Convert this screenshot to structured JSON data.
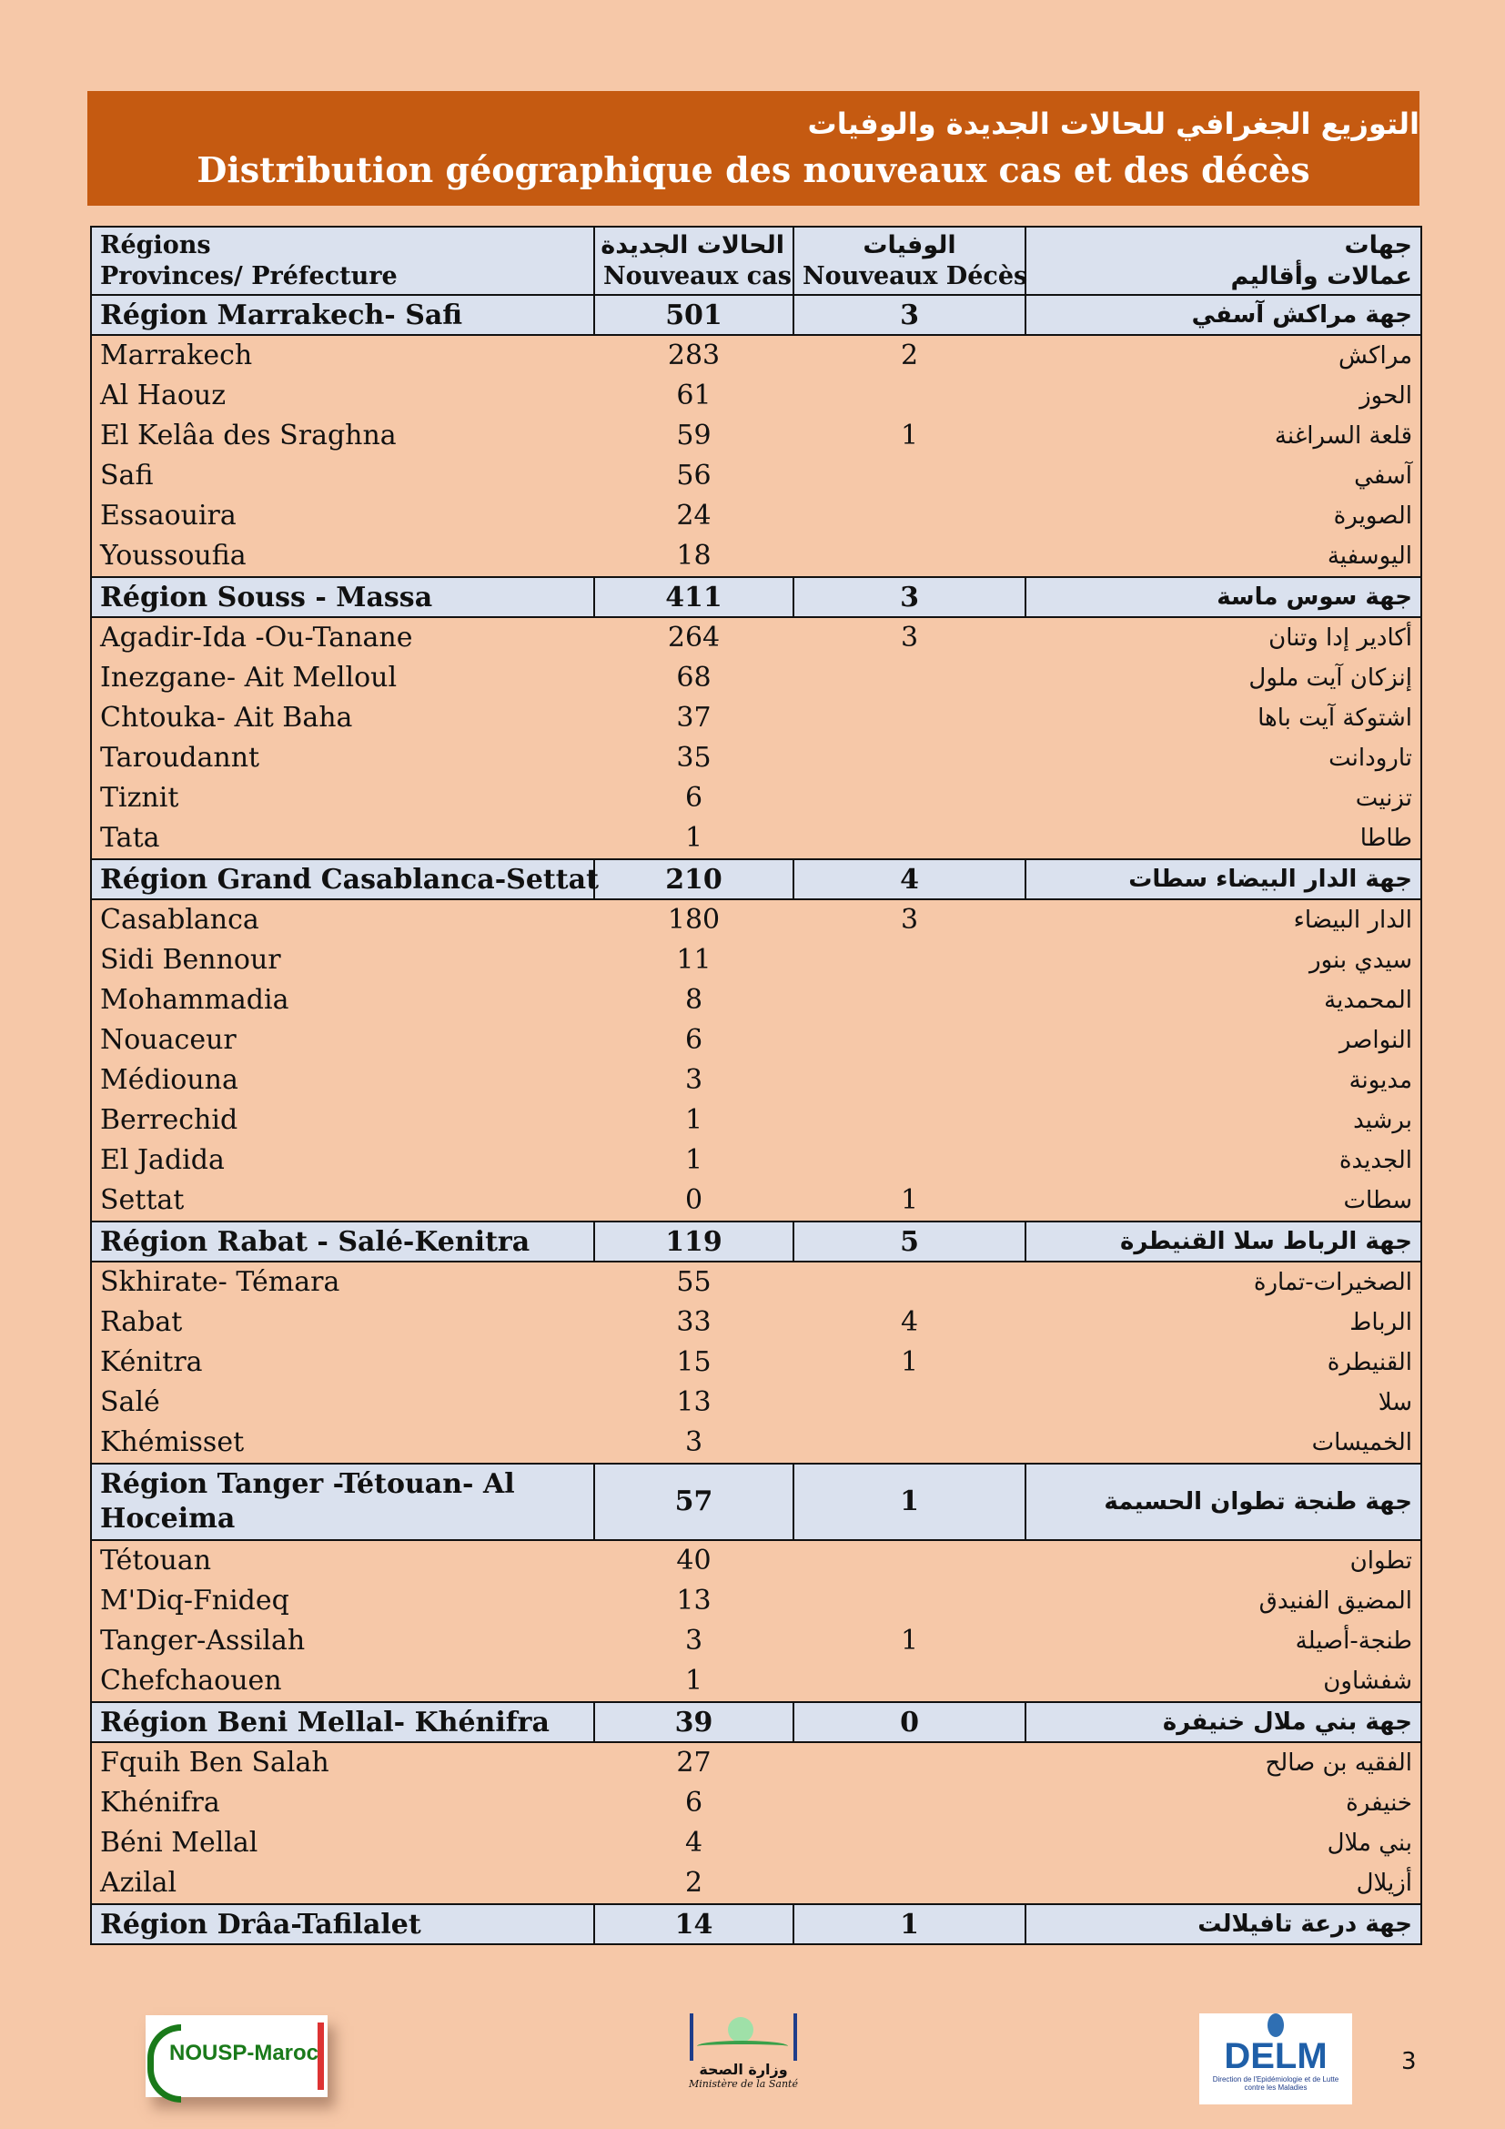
{
  "title": {
    "arabic": "التوزيع الجغرافي للحالات الجديدة والوفيات",
    "french": "Distribution géographique des nouveaux cas et des décès"
  },
  "table_header": {
    "col1_line1": "Régions",
    "col1_line2": "Provinces/ Préfecture",
    "col2_line1": "الحالات الجديدة",
    "col2_line2": "Nouveaux cas",
    "col3_line1": "الوفيات",
    "col3_line2": "Nouveaux Décès",
    "col4_line1": "جهات",
    "col4_line2": "عمالات وأقاليم"
  },
  "regions": [
    {
      "name": "Région Marrakech- Safi",
      "cases": "501",
      "deaths": "3",
      "arabic": "جهة مراكش آسفي",
      "provinces": [
        {
          "name": "Marrakech",
          "cases": "283",
          "deaths": "2",
          "arabic": "مراكش"
        },
        {
          "name": "Al  Haouz",
          "cases": "61",
          "deaths": "",
          "arabic": "الحوز"
        },
        {
          "name": "El Kelâa des  Sraghna",
          "cases": "59",
          "deaths": "1",
          "arabic": "قلعة السراغنة"
        },
        {
          "name": "Safi",
          "cases": "56",
          "deaths": "",
          "arabic": "آسفي"
        },
        {
          "name": "Essaouira",
          "cases": "24",
          "deaths": "",
          "arabic": "الصويرة"
        },
        {
          "name": "Youssoufia",
          "cases": "18",
          "deaths": "",
          "arabic": "اليوسفية"
        }
      ]
    },
    {
      "name": "Région Souss - Massa",
      "cases": "411",
      "deaths": "3",
      "arabic": "جهة سوس ماسة",
      "provinces": [
        {
          "name": "Agadir-Ida -Ou-Tanane",
          "cases": "264",
          "deaths": "3",
          "arabic": "أكادير إدا وتنان"
        },
        {
          "name": "Inezgane- Ait Melloul",
          "cases": "68",
          "deaths": "",
          "arabic": "إنزكان آيت ملول"
        },
        {
          "name": "Chtouka- Ait Baha",
          "cases": "37",
          "deaths": "",
          "arabic": "اشتوكة آيت باها"
        },
        {
          "name": "Taroudannt",
          "cases": "35",
          "deaths": "",
          "arabic": "تارودانت"
        },
        {
          "name": "Tiznit",
          "cases": "6",
          "deaths": "",
          "arabic": "تزنيت"
        },
        {
          "name": "Tata",
          "cases": "1",
          "deaths": "",
          "arabic": "طاطا"
        }
      ]
    },
    {
      "name": "Région Grand Casablanca-Settat",
      "cases": "210",
      "deaths": "4",
      "arabic": "جهة الدار البيضاء سطات",
      "provinces": [
        {
          "name": "Casablanca",
          "cases": "180",
          "deaths": "3",
          "arabic": "الدار البيضاء"
        },
        {
          "name": "Sidi Bennour",
          "cases": "11",
          "deaths": "",
          "arabic": "سيدي بنور"
        },
        {
          "name": "Mohammadia",
          "cases": "8",
          "deaths": "",
          "arabic": "المحمدية"
        },
        {
          "name": "Nouaceur",
          "cases": "6",
          "deaths": "",
          "arabic": "النواصر"
        },
        {
          "name": "Médiouna",
          "cases": "3",
          "deaths": "",
          "arabic": "مديونة"
        },
        {
          "name": "Berrechid",
          "cases": "1",
          "deaths": "",
          "arabic": "برشيد"
        },
        {
          "name": "El Jadida",
          "cases": "1",
          "deaths": "",
          "arabic": "الجديدة"
        },
        {
          "name": "Settat",
          "cases": "0",
          "deaths": "1",
          "arabic": "سطات"
        }
      ]
    },
    {
      "name": "Région Rabat - Salé-Kenitra",
      "cases": "119",
      "deaths": "5",
      "arabic": "جهة الرباط سلا القنيطرة",
      "provinces": [
        {
          "name": "Skhirate- Témara",
          "cases": "55",
          "deaths": "",
          "arabic": "الصخيرات-تمارة"
        },
        {
          "name": "Rabat",
          "cases": "33",
          "deaths": "4",
          "arabic": "الرباط"
        },
        {
          "name": "Kénitra",
          "cases": "15",
          "deaths": "1",
          "arabic": "القنيطرة"
        },
        {
          "name": "Salé",
          "cases": "13",
          "deaths": "",
          "arabic": "سلا"
        },
        {
          "name": "Khémisset",
          "cases": "3",
          "deaths": "",
          "arabic": "الخميسات"
        }
      ]
    },
    {
      "name": "Région Tanger -Tétouan- Al Hoceima",
      "cases": "57",
      "deaths": "1",
      "arabic": "جهة طنجة تطوان الحسيمة",
      "provinces": [
        {
          "name": "Tétouan",
          "cases": "40",
          "deaths": "",
          "arabic": "تطوان"
        },
        {
          "name": "M'Diq-Fnideq",
          "cases": "13",
          "deaths": "",
          "arabic": "المضيق الفنيدق"
        },
        {
          "name": "Tanger-Assilah",
          "cases": "3",
          "deaths": "1",
          "arabic": "طنجة-أصيلة"
        },
        {
          "name": "Chefchaouen",
          "cases": "1",
          "deaths": "",
          "arabic": "شفشاون"
        }
      ]
    },
    {
      "name": "Région Beni Mellal- Khénifra",
      "cases": "39",
      "deaths": "0",
      "arabic": "جهة بني ملال خنيفرة",
      "provinces": [
        {
          "name": "Fquih Ben Salah",
          "cases": "27",
          "deaths": "",
          "arabic": "الفقيه بن صالح"
        },
        {
          "name": "Khénifra",
          "cases": "6",
          "deaths": "",
          "arabic": "خنيفرة"
        },
        {
          "name": "Béni Mellal",
          "cases": "4",
          "deaths": "",
          "arabic": "بني ملال"
        },
        {
          "name": "Azilal",
          "cases": "2",
          "deaths": "",
          "arabic": "أزيلال"
        }
      ]
    },
    {
      "name": "Région Drâa-Tafilalet",
      "cases": "14",
      "deaths": "1",
      "arabic": "جهة درعة تافيلالت",
      "provinces": []
    }
  ],
  "footer": {
    "logo_left": "NOUSP-Maroc",
    "logo_center_ar": "وزارة الصحة",
    "logo_center_fr": "Ministère de la Santé",
    "logo_right": "DELM",
    "logo_right_sub": "Direction de l'Epidémiologie et de Lutte contre les Maladies",
    "page_number": "3"
  },
  "colors": {
    "banner": "#c55a11",
    "page": "#f6c8a8",
    "header_fill": "#dae1ee"
  }
}
